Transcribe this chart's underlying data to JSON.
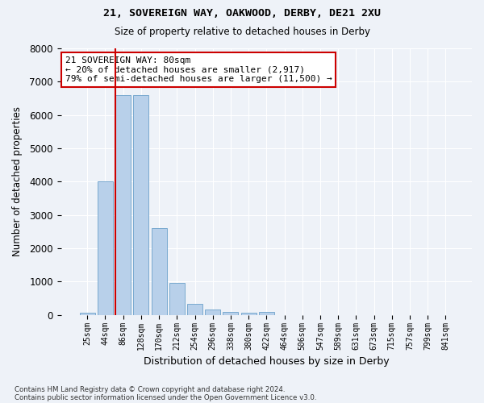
{
  "title1": "21, SOVEREIGN WAY, OAKWOOD, DERBY, DE21 2XU",
  "title2": "Size of property relative to detached houses in Derby",
  "xlabel": "Distribution of detached houses by size in Derby",
  "ylabel": "Number of detached properties",
  "bar_labels": [
    "25sqm",
    "44sqm",
    "86sqm",
    "128sqm",
    "170sqm",
    "212sqm",
    "254sqm",
    "296sqm",
    "338sqm",
    "380sqm",
    "422sqm",
    "464sqm",
    "506sqm",
    "547sqm",
    "589sqm",
    "631sqm",
    "673sqm",
    "715sqm",
    "757sqm",
    "799sqm",
    "841sqm"
  ],
  "bar_heights": [
    75,
    4000,
    6600,
    6600,
    2600,
    950,
    325,
    175,
    100,
    75,
    80,
    0,
    0,
    0,
    0,
    0,
    0,
    0,
    0,
    0,
    0
  ],
  "bar_color": "#b8d0ea",
  "bar_edge_color": "#7aaad0",
  "property_line_color": "#cc0000",
  "property_line_bar_index": 2,
  "annotation_text": "21 SOVEREIGN WAY: 80sqm\n← 20% of detached houses are smaller (2,917)\n79% of semi-detached houses are larger (11,500) →",
  "annotation_box_color": "#ffffff",
  "annotation_box_edge": "#cc0000",
  "background_color": "#eef2f8",
  "grid_color": "#ffffff",
  "ylim": [
    0,
    8000
  ],
  "yticks": [
    0,
    1000,
    2000,
    3000,
    4000,
    5000,
    6000,
    7000,
    8000
  ],
  "footer1": "Contains HM Land Registry data © Crown copyright and database right 2024.",
  "footer2": "Contains public sector information licensed under the Open Government Licence v3.0."
}
